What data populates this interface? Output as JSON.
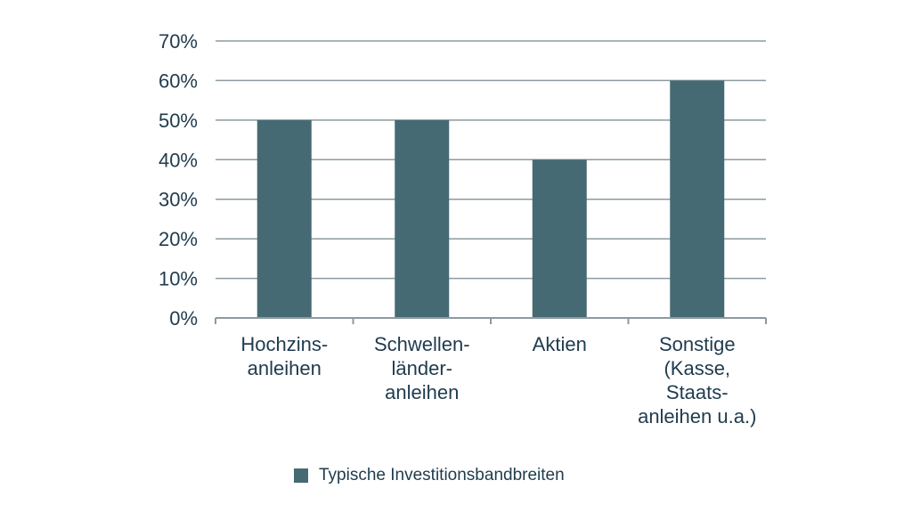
{
  "chart_data": {
    "type": "bar",
    "categories": [
      [
        "Hochzins-",
        "anleihen"
      ],
      [
        "Schwellen-",
        "länder-",
        "anleihen"
      ],
      [
        "Aktien"
      ],
      [
        "Sonstige",
        "(Kasse,",
        "Staats-",
        "anleihen u.a.)"
      ]
    ],
    "series": [
      {
        "name": "Typische Investitionsbandbreiten",
        "values": [
          50,
          50,
          40,
          60
        ]
      }
    ],
    "y_ticks": [
      "0%",
      "10%",
      "20%",
      "30%",
      "40%",
      "50%",
      "60%",
      "70%"
    ],
    "ylim": [
      0,
      70
    ],
    "y_step": 10,
    "grid": true,
    "legend_position": "bottom",
    "colors": {
      "bar": "#466a73",
      "grid": "#8c9aa0",
      "text": "#1f3b4d"
    }
  }
}
